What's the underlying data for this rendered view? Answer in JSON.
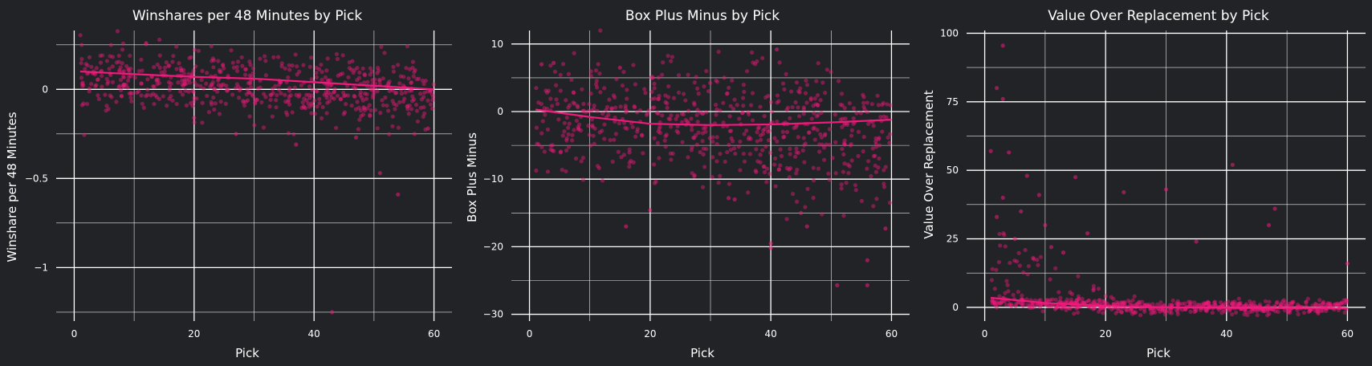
{
  "colors": {
    "background": "#222326",
    "grid": "#ffffff",
    "text": "#ffffff",
    "points": "#f0197c",
    "trend": "#f0197c"
  },
  "chart_data": [
    {
      "type": "scatter",
      "title": "Winshares per 48 Minutes by Pick",
      "xlabel": "Pick",
      "ylabel": "Winshare per 48 Minutes",
      "xlim": [
        -3,
        63
      ],
      "ylim": [
        -1.3,
        0.33
      ],
      "xticks": [
        0,
        20,
        40,
        60
      ],
      "yticks": [
        0,
        -0.5,
        -1
      ],
      "ytick_labels": [
        "0",
        "−0.5",
        "−1"
      ],
      "trend": {
        "x": [
          1,
          10,
          20,
          30,
          40,
          50,
          60
        ],
        "y": [
          0.1,
          0.085,
          0.07,
          0.06,
          0.04,
          0.02,
          0.0
        ]
      },
      "band": {
        "center": 0.06,
        "slope": -0.0014,
        "spread": 0.09
      },
      "outliers": [
        [
          43,
          -1.25
        ],
        [
          54,
          -0.59
        ],
        [
          51,
          -0.47
        ],
        [
          37,
          -0.31
        ],
        [
          27,
          -0.25
        ],
        [
          47,
          -0.27
        ],
        [
          20,
          -0.16
        ],
        [
          59,
          -0.22
        ]
      ]
    },
    {
      "type": "scatter",
      "title": "Box Plus Minus by Pick",
      "xlabel": "Pick",
      "ylabel": "Box Plus Minus",
      "xlim": [
        -3,
        63
      ],
      "ylim": [
        -31,
        12
      ],
      "xticks": [
        0,
        20,
        40,
        60
      ],
      "yticks": [
        10,
        0,
        -10,
        -20,
        -30
      ],
      "ytick_labels": [
        "10",
        "0",
        "−10",
        "−20",
        "−30"
      ],
      "trend": {
        "x": [
          1,
          10,
          20,
          30,
          40,
          50,
          60
        ],
        "y": [
          0.3,
          -0.8,
          -1.8,
          -2.0,
          -1.9,
          -1.6,
          -1.2
        ]
      },
      "band": {
        "center": -0.5,
        "slope": -0.06,
        "spread": 4.5
      },
      "outliers": [
        [
          41,
          9.2
        ],
        [
          2,
          7.0
        ],
        [
          4,
          7.2
        ],
        [
          15,
          6.5
        ],
        [
          40,
          -20.2
        ],
        [
          40,
          -19.5
        ],
        [
          56,
          -25.7
        ],
        [
          51,
          -25.7
        ],
        [
          56,
          -22.0
        ],
        [
          59,
          -17.3
        ],
        [
          16,
          -17.0
        ],
        [
          20,
          -14.6
        ],
        [
          46,
          -17.0
        ],
        [
          45,
          -15.0
        ],
        [
          33,
          -12.8
        ],
        [
          34,
          -13.0
        ]
      ]
    },
    {
      "type": "scatter",
      "title": "Value Over Replacement by Pick",
      "xlabel": "Pick",
      "ylabel": "Value Over Replacement",
      "xlim": [
        -3,
        63
      ],
      "ylim": [
        -5,
        101
      ],
      "xticks": [
        0,
        20,
        40,
        60
      ],
      "yticks": [
        100,
        75,
        50,
        25,
        0
      ],
      "ytick_labels": [
        "100",
        "75",
        "50",
        "25",
        "0"
      ],
      "trend": {
        "x": [
          1,
          10,
          20,
          30,
          40,
          50,
          60
        ],
        "y": [
          3.5,
          1.6,
          0.5,
          0.0,
          -0.2,
          -0.3,
          -0.4
        ]
      },
      "band": {
        "center": 0.0,
        "slope": 0,
        "spread": 1.2
      },
      "outliers": [
        [
          3,
          95.5
        ],
        [
          2,
          80.0
        ],
        [
          3,
          76.0
        ],
        [
          1,
          57.0
        ],
        [
          4,
          56.5
        ],
        [
          41,
          52.0
        ],
        [
          7,
          48.0
        ],
        [
          15,
          47.5
        ],
        [
          30,
          43.0
        ],
        [
          23,
          42.0
        ],
        [
          3,
          40.0
        ],
        [
          9,
          41.0
        ],
        [
          6,
          35.0
        ],
        [
          48,
          36.0
        ],
        [
          2,
          33.0
        ],
        [
          10,
          30.0
        ],
        [
          11,
          22.0
        ],
        [
          47,
          30.0
        ],
        [
          35,
          24.0
        ],
        [
          17,
          27.0
        ],
        [
          5,
          25.0
        ],
        [
          13,
          20.0
        ],
        [
          8,
          18.0
        ],
        [
          60,
          16.0
        ]
      ]
    }
  ]
}
